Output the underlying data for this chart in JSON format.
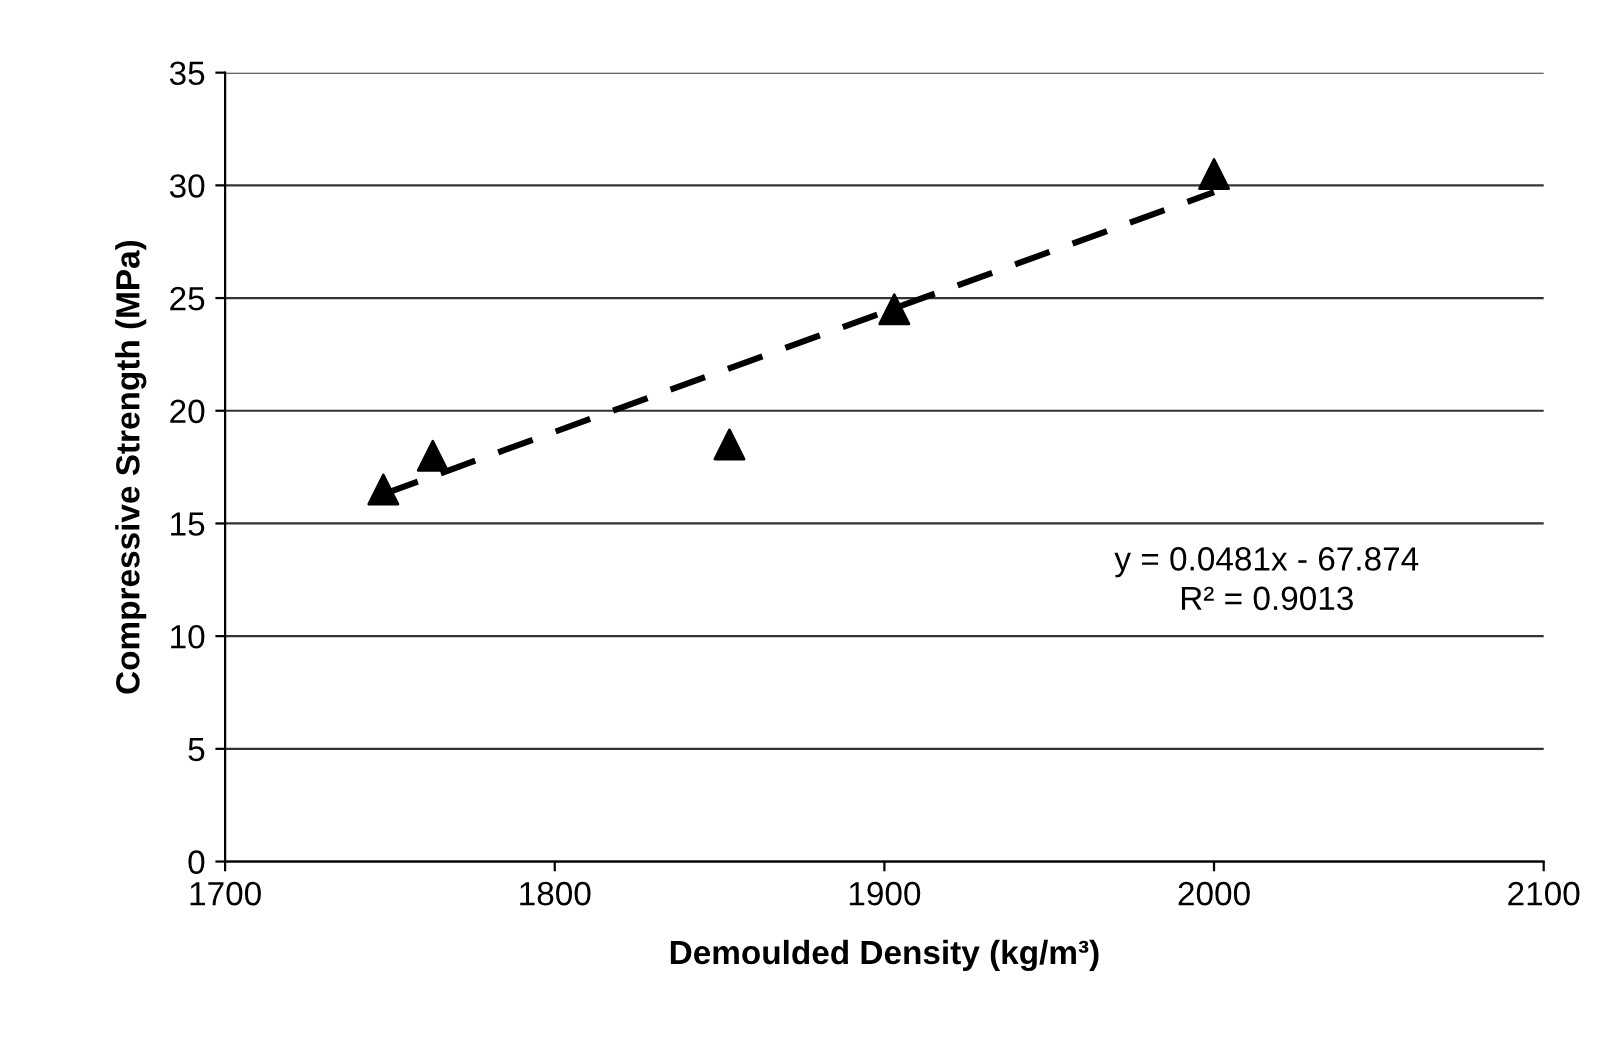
{
  "chart_data": {
    "type": "scatter",
    "xlabel": "Demoulded Density (kg/m³)",
    "ylabel": "Compressive Strength (MPa)",
    "x": [
      1748,
      1763,
      1853,
      1903,
      2000
    ],
    "series": [
      {
        "color": "#000000",
        "marker": "triangle",
        "values": [
          16.5,
          18,
          18.5,
          24.5,
          30.5
        ]
      },
      {
        "type": "line",
        "color": "#000000",
        "line_style": "dashed",
        "marker": "none",
        "x": [
          1748,
          2000
        ],
        "values": [
          16.3,
          29.7
        ]
      }
    ],
    "annotations": [
      "y = 0.0481x - 67.874",
      "R² = 0.9013"
    ],
    "xlim": [
      1700,
      2100
    ],
    "xticks": [
      1700,
      1800,
      1900,
      2000,
      2100
    ],
    "ylim": [
      0,
      35
    ],
    "yticks": [
      0,
      5,
      10,
      15,
      20,
      25,
      30,
      35
    ],
    "grid": "y",
    "legend": false
  }
}
